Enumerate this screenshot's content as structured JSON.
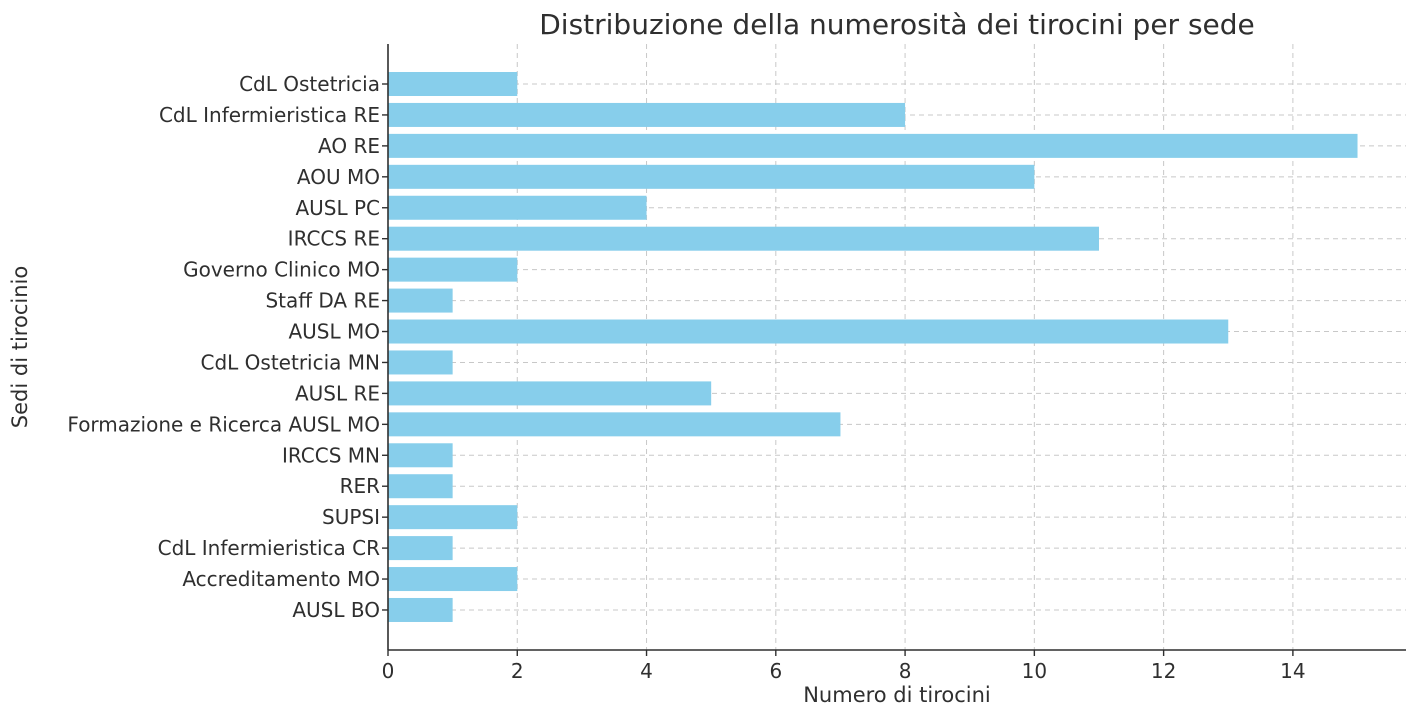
{
  "chart_data": {
    "type": "bar",
    "orientation": "horizontal",
    "title": "Distribuzione della numerosità dei tirocini per sede",
    "xlabel": "Numero di tirocini",
    "ylabel": "Sedi di tirocinio",
    "categories": [
      "CdL Ostetricia",
      "CdL Infermieristica RE",
      "AO RE",
      "AOU MO",
      "AUSL PC",
      "IRCCS RE",
      "Governo Clinico MO",
      "Staff DA RE",
      "AUSL MO",
      "CdL Ostetricia MN",
      "AUSL RE",
      "Formazione e Ricerca AUSL MO",
      "IRCCS MN",
      "RER",
      "SUPSI",
      "CdL Infermieristica CR",
      "Accreditamento MO",
      "AUSL BO"
    ],
    "values": [
      2,
      8,
      15,
      10,
      4,
      11,
      2,
      1,
      13,
      1,
      5,
      7,
      1,
      1,
      2,
      1,
      2,
      1
    ],
    "xlim": [
      0,
      15.75
    ],
    "xticks": [
      0,
      2,
      4,
      6,
      8,
      10,
      12,
      14
    ],
    "grid": true,
    "bar_color": "#87ceeb"
  }
}
